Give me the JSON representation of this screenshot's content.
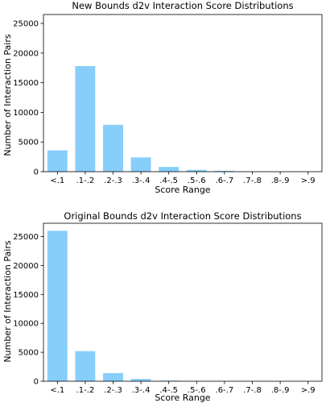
{
  "chart_data": [
    {
      "type": "bar",
      "title": "New Bounds d2v Interaction Score Distributions",
      "xlabel": "Score Range",
      "ylabel": "Number of Interaction Pairs",
      "categories": [
        "<.1",
        ".1-.2",
        ".2-.3",
        ".3-.4",
        ".4-.5",
        ".5-.6",
        ".6-.7",
        ".7-.8",
        ".8-.9",
        ">.9"
      ],
      "values": [
        3600,
        17800,
        7900,
        2400,
        800,
        300,
        150,
        20,
        5,
        0
      ],
      "ylim": [
        0,
        26500
      ],
      "yticks": [
        0,
        5000,
        10000,
        15000,
        20000,
        25000
      ],
      "bar_color": "#87cefa",
      "grid": false,
      "legend": "none"
    },
    {
      "type": "bar",
      "title": "Original Bounds d2v Interaction Score Distributions",
      "xlabel": "Score Range",
      "ylabel": "Number of Interaction Pairs",
      "categories": [
        "<.1",
        ".1-.2",
        ".2-.3",
        ".3-.4",
        ".4-.5",
        ".5-.6",
        ".6-.7",
        ".7-.8",
        ".8-.9",
        ">.9"
      ],
      "values": [
        26000,
        5200,
        1400,
        400,
        100,
        10,
        5,
        0,
        0,
        0
      ],
      "ylim": [
        0,
        27300
      ],
      "yticks": [
        0,
        5000,
        10000,
        15000,
        20000,
        25000
      ],
      "bar_color": "#87cefa",
      "grid": false,
      "legend": "none"
    }
  ]
}
